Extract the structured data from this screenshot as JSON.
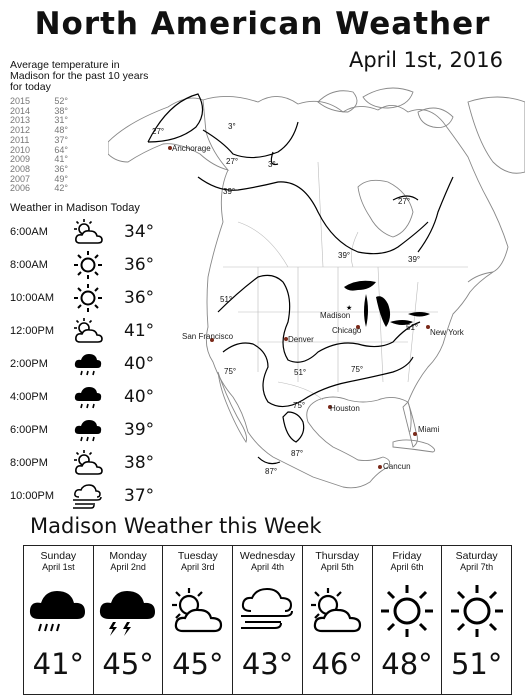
{
  "header": {
    "title": "North American Weather",
    "date": "April 1st, 2016"
  },
  "averages": {
    "title": "Average temperature in Madison for the past 10 years for today",
    "rows": [
      {
        "year": "2015",
        "temp": "52°"
      },
      {
        "year": "2014",
        "temp": "38°"
      },
      {
        "year": "2013",
        "temp": "31°"
      },
      {
        "year": "2012",
        "temp": "48°"
      },
      {
        "year": "2011",
        "temp": "37°"
      },
      {
        "year": "2010",
        "temp": "64°"
      },
      {
        "year": "2009",
        "temp": "41°"
      },
      {
        "year": "2008",
        "temp": "36°"
      },
      {
        "year": "2007",
        "temp": "49°"
      },
      {
        "year": "2006",
        "temp": "42°"
      }
    ]
  },
  "today": {
    "title": "Weather in Madison Today",
    "hours": [
      {
        "time": "6:00AM",
        "icon": "partly-cloudy-icon",
        "temp": "34°"
      },
      {
        "time": "8:00AM",
        "icon": "sun-icon",
        "temp": "36°"
      },
      {
        "time": "10:00AM",
        "icon": "sun-icon",
        "temp": "36°"
      },
      {
        "time": "12:00PM",
        "icon": "partly-cloudy-icon",
        "temp": "41°"
      },
      {
        "time": "2:00PM",
        "icon": "rain-cloud-icon",
        "temp": "40°"
      },
      {
        "time": "4:00PM",
        "icon": "rain-cloud-icon",
        "temp": "40°"
      },
      {
        "time": "6:00PM",
        "icon": "rain-cloud-icon",
        "temp": "39°"
      },
      {
        "time": "8:00PM",
        "icon": "partly-cloudy-icon",
        "temp": "38°"
      },
      {
        "time": "10:00PM",
        "icon": "wind-cloud-icon",
        "temp": "37°"
      }
    ]
  },
  "map": {
    "cities": [
      "Anchorage",
      "San Francisco",
      "Denver",
      "Madison",
      "Chicago",
      "New York",
      "Houston",
      "Miami",
      "Cancun"
    ],
    "isotherms": [
      "27°",
      "3°",
      "27°",
      "3°",
      "39°",
      "27°",
      "39°",
      "39°",
      "51°",
      "51°",
      "51°",
      "75°",
      "75°",
      "75°",
      "87°",
      "87°"
    ]
  },
  "week": {
    "title": "Madison Weather this Week",
    "days": [
      {
        "name": "Sunday",
        "date": "April 1st",
        "icon": "rain-cloud-icon",
        "temp": "41°"
      },
      {
        "name": "Monday",
        "date": "April 2nd",
        "icon": "thunderstorm-icon",
        "temp": "45°"
      },
      {
        "name": "Tuesday",
        "date": "April 3rd",
        "icon": "partly-cloudy-icon",
        "temp": "45°"
      },
      {
        "name": "Wednesday",
        "date": "April 4th",
        "icon": "wind-cloud-icon",
        "temp": "43°"
      },
      {
        "name": "Thursday",
        "date": "April 5th",
        "icon": "partly-cloudy-icon",
        "temp": "46°"
      },
      {
        "name": "Friday",
        "date": "April 6th",
        "icon": "sun-icon",
        "temp": "48°"
      },
      {
        "name": "Saturday",
        "date": "April 7th",
        "icon": "sun-icon",
        "temp": "51°"
      }
    ]
  }
}
